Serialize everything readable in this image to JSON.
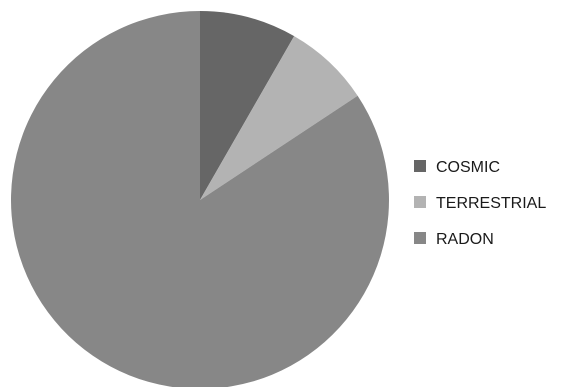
{
  "chart_data": {
    "type": "pie",
    "title": "",
    "start_angle_deg": 0,
    "direction": "clockwise",
    "legend_position": "right",
    "slices": [
      {
        "label": "COSMIC",
        "value": 8.3,
        "color": "#666666"
      },
      {
        "label": "TERRESTRIAL",
        "value": 7.4,
        "color": "#b3b3b3"
      },
      {
        "label": "RADON",
        "value": 84.3,
        "color": "#878787"
      }
    ]
  }
}
